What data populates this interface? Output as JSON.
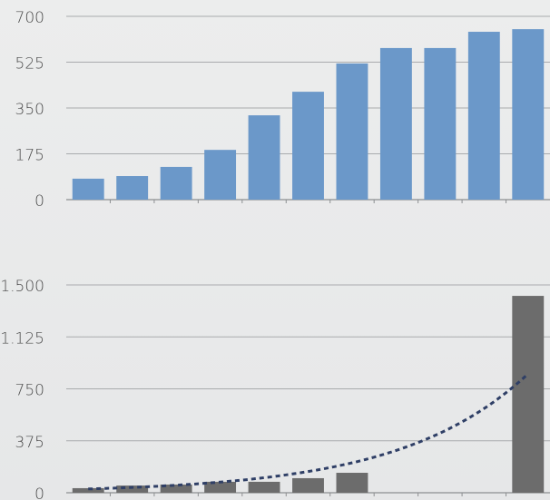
{
  "chart_data": [
    {
      "type": "bar",
      "values": [
        80,
        90,
        125,
        190,
        322,
        412,
        520,
        579,
        579,
        641,
        651
      ],
      "color": "#6b98c9",
      "ylim": [
        0,
        700
      ],
      "yticks": [
        0,
        175,
        350,
        525,
        700
      ],
      "grid": true
    },
    {
      "type": "bar",
      "values": [
        33,
        52,
        59,
        79,
        79,
        105,
        144,
        null,
        null,
        null,
        1421
      ],
      "color": "#6c6c6c",
      "ylim": [
        0,
        1500
      ],
      "yticks": [
        0,
        375,
        750,
        {
          "value": 1125,
          "label": "1.125"
        },
        {
          "value": 1500,
          "label": "1.500"
        }
      ],
      "grid": true,
      "trendline": {
        "type": "exponential",
        "color": "#2f3f66"
      }
    }
  ]
}
